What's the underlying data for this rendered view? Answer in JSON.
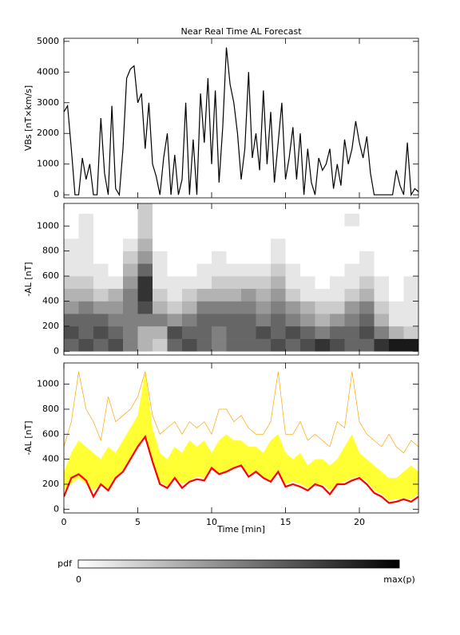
{
  "chart_data": [
    {
      "type": "line",
      "title": "Near Real Time AL Forecast",
      "ylabel": "VBs [nT×km/s]",
      "xlim": [
        0,
        24
      ],
      "xticks": [
        0,
        5,
        10,
        15,
        20
      ],
      "show_xtick_labels": false,
      "ylim": [
        -100,
        5100
      ],
      "yticks": [
        0,
        1000,
        2000,
        3000,
        4000,
        5000
      ],
      "x": [
        0,
        0.25,
        0.5,
        0.75,
        1,
        1.25,
        1.5,
        1.75,
        2,
        2.25,
        2.5,
        2.75,
        3,
        3.25,
        3.5,
        3.75,
        4,
        4.25,
        4.5,
        4.75,
        5,
        5.25,
        5.5,
        5.75,
        6,
        6.25,
        6.5,
        6.75,
        7,
        7.25,
        7.5,
        7.75,
        8,
        8.25,
        8.5,
        8.75,
        9,
        9.25,
        9.5,
        9.75,
        10,
        10.25,
        10.5,
        10.75,
        11,
        11.25,
        11.5,
        11.75,
        12,
        12.25,
        12.5,
        12.75,
        13,
        13.25,
        13.5,
        13.75,
        14,
        14.25,
        14.5,
        14.75,
        15,
        15.25,
        15.5,
        15.75,
        16,
        16.25,
        16.5,
        16.75,
        17,
        17.25,
        17.5,
        17.75,
        18,
        18.25,
        18.5,
        18.75,
        19,
        19.25,
        19.5,
        19.75,
        20,
        20.25,
        20.5,
        20.75,
        21,
        21.25,
        21.5,
        21.75,
        22,
        22.25,
        22.5,
        22.75,
        23,
        23.25,
        23.5,
        23.75,
        24
      ],
      "series": [
        {
          "color": "#000000",
          "values": [
            2700,
            2900,
            1500,
            0,
            0,
            1200,
            500,
            1000,
            0,
            0,
            2500,
            700,
            0,
            2900,
            200,
            0,
            1500,
            3800,
            4100,
            4200,
            3000,
            3300,
            1500,
            3000,
            1000,
            600,
            0,
            1200,
            2000,
            0,
            1300,
            0,
            500,
            3000,
            0,
            1800,
            0,
            3300,
            1700,
            3800,
            1000,
            3400,
            400,
            2200,
            4800,
            3600,
            3000,
            2000,
            500,
            1500,
            4000,
            1200,
            2000,
            800,
            3400,
            1000,
            2700,
            400,
            1700,
            3000,
            500,
            1200,
            2200,
            500,
            2000,
            0,
            1500,
            400,
            0,
            1200,
            800,
            1000,
            1500,
            200,
            1000,
            300,
            1800,
            1000,
            1500,
            2400,
            1700,
            1200,
            1900,
            700,
            0,
            0,
            0,
            0,
            0,
            0,
            800,
            300,
            0,
            1700,
            0,
            200,
            100
          ]
        }
      ]
    },
    {
      "type": "heatmap",
      "ylabel": "-AL [nT]",
      "xlim": [
        0,
        24
      ],
      "xticks": [
        0,
        5,
        10,
        15,
        20
      ],
      "show_xtick_labels": false,
      "ylim": [
        -30,
        1180
      ],
      "yticks": [
        0,
        200,
        400,
        600,
        800,
        1000
      ],
      "xbins": [
        0,
        1,
        2,
        3,
        4,
        5,
        6,
        7,
        8,
        9,
        10,
        11,
        12,
        13,
        14,
        15,
        16,
        17,
        18,
        19,
        20,
        21,
        22,
        23,
        24
      ],
      "ybins": [
        0,
        100,
        200,
        300,
        400,
        500,
        600,
        700,
        800,
        900,
        1000,
        1100,
        1200
      ],
      "z": [
        [
          0.6,
          0.7,
          0.6,
          0.7,
          0.5,
          0.3,
          0.2,
          0.6,
          0.7,
          0.6,
          0.5,
          0.6,
          0.6,
          0.6,
          0.7,
          0.6,
          0.7,
          0.8,
          0.7,
          0.6,
          0.6,
          0.8,
          0.9,
          0.9
        ],
        [
          0.7,
          0.6,
          0.7,
          0.6,
          0.5,
          0.3,
          0.3,
          0.7,
          0.6,
          0.6,
          0.5,
          0.6,
          0.6,
          0.7,
          0.6,
          0.7,
          0.6,
          0.5,
          0.6,
          0.6,
          0.7,
          0.5,
          0.3,
          0.2
        ],
        [
          0.6,
          0.6,
          0.6,
          0.5,
          0.5,
          0.5,
          0.5,
          0.4,
          0.5,
          0.6,
          0.6,
          0.6,
          0.6,
          0.5,
          0.6,
          0.5,
          0.4,
          0.3,
          0.4,
          0.5,
          0.6,
          0.3,
          0.1,
          0.1
        ],
        [
          0.4,
          0.5,
          0.4,
          0.4,
          0.5,
          0.7,
          0.3,
          0.2,
          0.3,
          0.5,
          0.5,
          0.5,
          0.5,
          0.4,
          0.5,
          0.4,
          0.3,
          0.2,
          0.2,
          0.4,
          0.5,
          0.2,
          0.1,
          0.1
        ],
        [
          0.3,
          0.3,
          0.2,
          0.3,
          0.5,
          0.8,
          0.2,
          0.1,
          0.2,
          0.3,
          0.3,
          0.3,
          0.4,
          0.3,
          0.4,
          0.2,
          0.1,
          0.1,
          0.1,
          0.2,
          0.3,
          0.1,
          0,
          0.1
        ],
        [
          0.2,
          0.2,
          0.1,
          0.1,
          0.4,
          0.8,
          0.1,
          0.1,
          0.1,
          0.1,
          0.2,
          0.2,
          0.2,
          0.2,
          0.3,
          0.1,
          0.1,
          0,
          0.1,
          0.1,
          0.2,
          0.1,
          0,
          0.1
        ],
        [
          0.1,
          0.1,
          0.1,
          0,
          0.3,
          0.6,
          0.1,
          0,
          0,
          0.1,
          0.1,
          0.1,
          0.1,
          0.1,
          0.2,
          0.1,
          0,
          0,
          0,
          0.1,
          0.1,
          0,
          0,
          0
        ],
        [
          0.1,
          0.1,
          0,
          0,
          0.2,
          0.4,
          0.1,
          0,
          0,
          0,
          0.1,
          0,
          0,
          0,
          0.1,
          0,
          0,
          0,
          0,
          0,
          0.1,
          0,
          0,
          0
        ],
        [
          0.1,
          0.1,
          0,
          0,
          0.1,
          0.3,
          0,
          0,
          0,
          0,
          0,
          0,
          0,
          0,
          0.1,
          0,
          0,
          0,
          0,
          0,
          0,
          0,
          0,
          0
        ],
        [
          0,
          0.1,
          0,
          0,
          0,
          0.2,
          0,
          0,
          0,
          0,
          0,
          0,
          0,
          0,
          0,
          0,
          0,
          0,
          0,
          0,
          0,
          0,
          0,
          0
        ],
        [
          0,
          0.1,
          0,
          0,
          0,
          0.2,
          0,
          0,
          0,
          0,
          0,
          0,
          0,
          0,
          0,
          0,
          0,
          0,
          0,
          0.1,
          0,
          0,
          0,
          0
        ],
        [
          0,
          0,
          0,
          0,
          0,
          0.2,
          0,
          0,
          0,
          0,
          0,
          0,
          0,
          0,
          0,
          0,
          0,
          0,
          0,
          0,
          0,
          0,
          0,
          0
        ]
      ]
    },
    {
      "type": "line",
      "ylabel": "-AL [nT]",
      "xlabel": "Time [min]",
      "xlim": [
        0,
        24
      ],
      "xticks": [
        0,
        5,
        10,
        15,
        20
      ],
      "show_xtick_labels": true,
      "ylim": [
        -30,
        1170
      ],
      "yticks": [
        0,
        200,
        400,
        600,
        800,
        1000
      ],
      "x": [
        0,
        0.5,
        1,
        1.5,
        2,
        2.5,
        3,
        3.5,
        4,
        4.5,
        5,
        5.5,
        6,
        6.5,
        7,
        7.5,
        8,
        8.5,
        9,
        9.5,
        10,
        10.5,
        11,
        11.5,
        12,
        12.5,
        13,
        13.5,
        14,
        14.5,
        15,
        15.5,
        16,
        16.5,
        17,
        17.5,
        18,
        18.5,
        19,
        19.5,
        20,
        20.5,
        21,
        21.5,
        22,
        22.5,
        23,
        23.5,
        24
      ],
      "bands": [
        {
          "color": "#ffff33",
          "lower": [
            150,
            200,
            250,
            200,
            150,
            200,
            150,
            250,
            300,
            400,
            500,
            580,
            380,
            220,
            180,
            250,
            200,
            230,
            260,
            250,
            330,
            280,
            300,
            330,
            350,
            280,
            300,
            260,
            230,
            300,
            200,
            220,
            200,
            170,
            200,
            200,
            150,
            200,
            220,
            250,
            260,
            220,
            150,
            120,
            70,
            80,
            90,
            80,
            120
          ],
          "upper": [
            300,
            450,
            550,
            500,
            450,
            400,
            500,
            450,
            550,
            650,
            750,
            1100,
            650,
            450,
            400,
            500,
            450,
            550,
            500,
            550,
            450,
            550,
            600,
            550,
            550,
            500,
            500,
            450,
            550,
            600,
            450,
            400,
            450,
            350,
            400,
            400,
            350,
            400,
            500,
            600,
            450,
            400,
            350,
            300,
            250,
            250,
            300,
            350,
            300
          ]
        }
      ],
      "series": [
        {
          "color": "#ffa500",
          "values": [
            500,
            700,
            1100,
            800,
            700,
            550,
            900,
            700,
            750,
            800,
            900,
            1100,
            750,
            600,
            650,
            700,
            600,
            700,
            650,
            700,
            600,
            800,
            800,
            700,
            750,
            650,
            600,
            600,
            700,
            1100,
            600,
            600,
            700,
            550,
            600,
            550,
            500,
            700,
            650,
            1100,
            700,
            600,
            550,
            500,
            600,
            500,
            450,
            550,
            500
          ]
        },
        {
          "color": "#ff0000",
          "values": [
            100,
            250,
            280,
            230,
            100,
            200,
            150,
            250,
            300,
            400,
            500,
            580,
            380,
            200,
            170,
            250,
            170,
            220,
            240,
            230,
            330,
            280,
            300,
            330,
            350,
            260,
            300,
            250,
            220,
            300,
            180,
            200,
            180,
            150,
            200,
            180,
            120,
            200,
            200,
            230,
            250,
            200,
            130,
            100,
            50,
            60,
            80,
            60,
            100
          ]
        }
      ]
    }
  ],
  "colorbar": {
    "label": "pdf",
    "min_label": "0",
    "max_label": "max(p)"
  }
}
